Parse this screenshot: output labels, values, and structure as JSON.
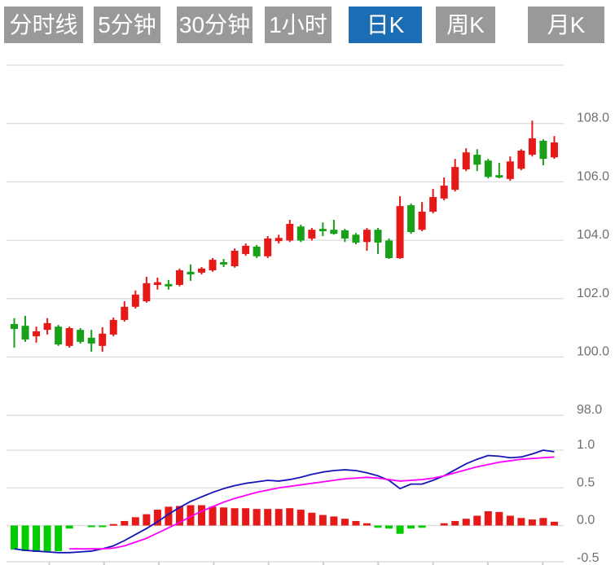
{
  "toolbar": {
    "buttons": [
      {
        "label": "分时线"
      },
      {
        "label": "5分钟"
      },
      {
        "label": "30分钟"
      },
      {
        "label": "1小时"
      },
      {
        "label": "日K"
      },
      {
        "label": "周K"
      },
      {
        "label": "月K"
      }
    ],
    "selected": "日K",
    "selected_index": 4
  },
  "chart_data": {
    "type": "candlestick",
    "title": "",
    "legend_position": "none",
    "grid": true,
    "y_axis_side": "right",
    "main_panel": {
      "ylabels": [
        "108.0",
        "106.0",
        "104.0",
        "102.0",
        "100.0",
        "98.0"
      ],
      "ylim": [
        97.2,
        110.0
      ],
      "candles_ohlc": [
        [
          101.13,
          101.33,
          100.32,
          100.96
        ],
        [
          101.07,
          101.41,
          100.52,
          100.6
        ],
        [
          100.71,
          101.04,
          100.49,
          100.88
        ],
        [
          100.93,
          101.33,
          100.77,
          101.16
        ],
        [
          101.04,
          101.1,
          100.38,
          100.43
        ],
        [
          100.38,
          101.04,
          100.32,
          100.99
        ],
        [
          100.93,
          100.99,
          100.46,
          100.52
        ],
        [
          100.66,
          100.93,
          100.18,
          100.46
        ],
        [
          100.38,
          101.02,
          100.18,
          100.8
        ],
        [
          100.77,
          101.35,
          100.71,
          101.27
        ],
        [
          101.27,
          101.91,
          101.21,
          101.72
        ],
        [
          101.72,
          102.28,
          101.66,
          102.14
        ],
        [
          101.91,
          102.75,
          101.86,
          102.53
        ],
        [
          102.47,
          102.72,
          102.31,
          102.56
        ],
        [
          102.5,
          102.64,
          102.31,
          102.42
        ],
        [
          102.47,
          103.03,
          102.42,
          102.97
        ],
        [
          102.92,
          103.17,
          102.61,
          102.83
        ],
        [
          102.89,
          103.08,
          102.83,
          103.03
        ],
        [
          102.97,
          103.39,
          102.92,
          103.33
        ],
        [
          103.25,
          103.36,
          103.08,
          103.17
        ],
        [
          103.11,
          103.72,
          103.06,
          103.64
        ],
        [
          103.53,
          103.89,
          103.47,
          103.81
        ],
        [
          103.78,
          103.84,
          103.39,
          103.45
        ],
        [
          103.45,
          104.14,
          103.39,
          104.06
        ],
        [
          103.97,
          104.19,
          103.89,
          104.08
        ],
        [
          103.99,
          104.7,
          103.94,
          104.56
        ],
        [
          104.47,
          104.53,
          103.94,
          103.99
        ],
        [
          104.06,
          104.42,
          103.99,
          104.36
        ],
        [
          104.39,
          104.61,
          104.14,
          104.31
        ],
        [
          104.36,
          104.7,
          104.19,
          104.22
        ],
        [
          104.34,
          104.39,
          103.94,
          104.06
        ],
        [
          104.19,
          104.25,
          103.86,
          103.92
        ],
        [
          103.94,
          104.42,
          103.64,
          104.36
        ],
        [
          104.36,
          104.42,
          103.53,
          103.92
        ],
        [
          103.99,
          104.06,
          103.36,
          103.39
        ],
        [
          103.39,
          105.51,
          103.36,
          105.17
        ],
        [
          105.2,
          105.26,
          104.22,
          104.28
        ],
        [
          104.36,
          105.31,
          104.31,
          104.98
        ],
        [
          104.98,
          105.76,
          104.92,
          105.48
        ],
        [
          105.43,
          106.15,
          105.37,
          105.87
        ],
        [
          105.73,
          106.79,
          105.67,
          106.51
        ],
        [
          106.43,
          107.15,
          106.37,
          107.01
        ],
        [
          106.93,
          107.12,
          106.37,
          106.59
        ],
        [
          106.73,
          106.79,
          106.12,
          106.17
        ],
        [
          106.23,
          106.65,
          106.12,
          106.15
        ],
        [
          106.1,
          106.87,
          106.04,
          106.7
        ],
        [
          106.45,
          107.12,
          106.4,
          107.07
        ],
        [
          106.93,
          108.1,
          106.87,
          107.49
        ],
        [
          107.41,
          107.46,
          106.57,
          106.79
        ],
        [
          106.84,
          107.57,
          106.79,
          107.35
        ]
      ]
    },
    "macd_panel": {
      "ylabels": [
        "1.0",
        "0.5",
        "0.0",
        "-0.5"
      ],
      "ylim": [
        -0.55,
        1.05
      ],
      "histogram": [
        -0.32,
        -0.34,
        -0.35,
        -0.34,
        -0.34,
        -0.04,
        0.0,
        -0.02,
        -0.02,
        0.02,
        0.06,
        0.11,
        0.15,
        0.21,
        0.25,
        0.26,
        0.27,
        0.27,
        0.25,
        0.24,
        0.23,
        0.23,
        0.22,
        0.22,
        0.22,
        0.23,
        0.21,
        0.17,
        0.14,
        0.12,
        0.09,
        0.06,
        0.03,
        -0.03,
        -0.04,
        -0.11,
        -0.04,
        -0.03,
        0.0,
        0.03,
        0.06,
        0.09,
        0.13,
        0.19,
        0.18,
        0.13,
        0.1,
        0.08,
        0.1,
        0.05
      ],
      "dif_line": [
        -0.31,
        -0.33,
        -0.34,
        -0.35,
        -0.36,
        -0.36,
        -0.35,
        -0.34,
        -0.31,
        -0.27,
        -0.2,
        -0.12,
        -0.04,
        0.05,
        0.15,
        0.24,
        0.32,
        0.38,
        0.44,
        0.49,
        0.53,
        0.56,
        0.58,
        0.6,
        0.59,
        0.61,
        0.64,
        0.68,
        0.71,
        0.73,
        0.74,
        0.73,
        0.7,
        0.66,
        0.6,
        0.49,
        0.55,
        0.55,
        0.6,
        0.66,
        0.74,
        0.82,
        0.88,
        0.93,
        0.92,
        0.9,
        0.91,
        0.95,
        1.0,
        0.98
      ],
      "dea_line": [
        null,
        null,
        null,
        null,
        null,
        -0.31,
        -0.31,
        -0.31,
        -0.31,
        -0.3,
        -0.27,
        -0.22,
        -0.17,
        -0.1,
        -0.03,
        0.04,
        0.12,
        0.19,
        0.25,
        0.31,
        0.36,
        0.4,
        0.44,
        0.47,
        0.5,
        0.52,
        0.54,
        0.56,
        0.58,
        0.6,
        0.62,
        0.63,
        0.64,
        0.63,
        0.61,
        0.59,
        0.6,
        0.61,
        0.63,
        0.66,
        0.7,
        0.74,
        0.78,
        0.81,
        0.84,
        0.86,
        0.88,
        0.89,
        0.9,
        0.91
      ]
    },
    "colors": {
      "up_candle": "#e61919",
      "down_candle": "#18a018",
      "hist_up": "#e61919",
      "hist_down": "#00cc00",
      "dif_line": "#1414b8",
      "dea_line": "#ff00ff",
      "grid": "#dcdcdc",
      "axis_text": "#707070",
      "button_bg": "#999999",
      "button_active_bg": "#1c6eb4",
      "button_text": "#ffffff"
    }
  }
}
